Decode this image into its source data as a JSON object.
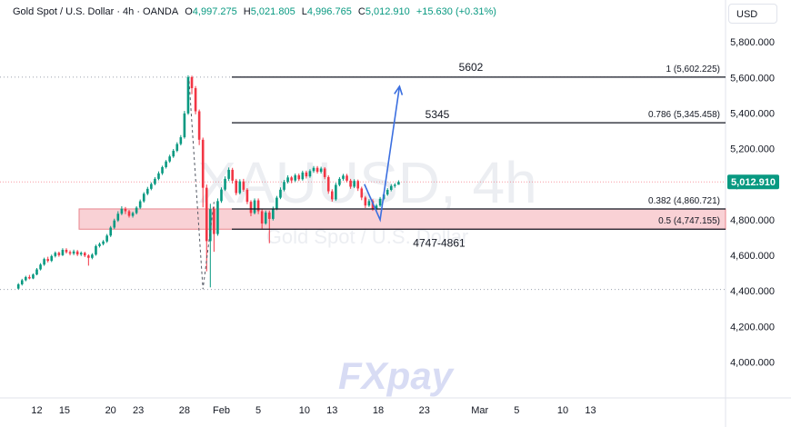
{
  "header": {
    "title": "Gold Spot / U.S. Dollar · 4h · OANDA",
    "o_label": "O",
    "o_value": "4,997.275",
    "h_label": "H",
    "h_value": "5,021.805",
    "l_label": "L",
    "l_value": "4,996.765",
    "c_label": "C",
    "c_value": "5,012.910",
    "change": "+15.630 (+0.31%)"
  },
  "currency_button": "USD",
  "watermark": {
    "symbol": "XAUUSD, 4h",
    "name": "Gold Spot / U.S. Dollar"
  },
  "logo": {
    "text": "FXpay"
  },
  "colors": {
    "up": "#089981",
    "down": "#f23645",
    "zone": "#f7c2c7",
    "arrow": "#3b6fe0",
    "price_tag": "#089981"
  },
  "chart_data": {
    "type": "candlestick",
    "ylim": [
      3900,
      5900
    ],
    "y_ticks": [
      4000,
      4200,
      4400,
      4600,
      4800,
      5000,
      5200,
      5400,
      5600,
      5800
    ],
    "y_tick_labels": [
      "4,000.000",
      "4,200.000",
      "4,400.000",
      "4,600.000",
      "4,800.000",
      "5,000.000",
      "5,200.000",
      "5,400.000",
      "5,600.000",
      "5,800.000"
    ],
    "x_ticks": [
      {
        "label": "12",
        "day": 12
      },
      {
        "label": "15",
        "day": 15
      },
      {
        "label": "20",
        "day": 20
      },
      {
        "label": "23",
        "day": 23
      },
      {
        "label": "28",
        "day": 28
      },
      {
        "label": "Feb",
        "day": 32
      },
      {
        "label": "5",
        "day": 36
      },
      {
        "label": "10",
        "day": 41
      },
      {
        "label": "13",
        "day": 44
      },
      {
        "label": "18",
        "day": 49
      },
      {
        "label": "23",
        "day": 54
      },
      {
        "label": "Mar",
        "day": 60
      },
      {
        "label": "5",
        "day": 64
      },
      {
        "label": "10",
        "day": 69
      },
      {
        "label": "13",
        "day": 72
      }
    ],
    "last_price": 5012.91,
    "last_price_label": "5,012.910",
    "fib_levels": [
      {
        "label": "1 (5,602.225)",
        "price": 5602.225
      },
      {
        "label": "0.786 (5,345.458)",
        "price": 5345.458
      },
      {
        "label": "0.382 (4,860.721)",
        "price": 4860.721
      },
      {
        "label": "0.5 (4,747.155)",
        "price": 4747.155
      }
    ],
    "support_zone": {
      "low": 4747,
      "high": 4861,
      "label": "4747-4861"
    },
    "annotations": [
      {
        "text": "5602",
        "price": 5602
      },
      {
        "text": "5345",
        "price": 5345
      }
    ],
    "projection": [
      {
        "day": 47.5,
        "price": 5000
      },
      {
        "day": 49.2,
        "price": 4800
      },
      {
        "day": 51.3,
        "price": 5550
      }
    ],
    "dashed_path": [
      {
        "day": 28.5,
        "price": 5580
      },
      {
        "day": 30.0,
        "price": 4410
      },
      {
        "day": 31.2,
        "price": 4900
      }
    ],
    "candles": [
      [
        10.0,
        4413,
        4437,
        4408,
        4444
      ],
      [
        10.4,
        4437,
        4460,
        4430,
        4468
      ],
      [
        10.8,
        4460,
        4478,
        4454,
        4485
      ],
      [
        11.2,
        4478,
        4470,
        4465,
        4490
      ],
      [
        11.6,
        4470,
        4492,
        4466,
        4498
      ],
      [
        12.0,
        4492,
        4521,
        4488,
        4529
      ],
      [
        12.4,
        4521,
        4548,
        4515,
        4556
      ],
      [
        12.8,
        4548,
        4579,
        4541,
        4587
      ],
      [
        13.2,
        4579,
        4569,
        4560,
        4592
      ],
      [
        13.6,
        4569,
        4596,
        4562,
        4604
      ],
      [
        14.0,
        4596,
        4614,
        4588,
        4622
      ],
      [
        14.4,
        4614,
        4601,
        4592,
        4621
      ],
      [
        14.8,
        4601,
        4631,
        4596,
        4640
      ],
      [
        15.2,
        4631,
        4618,
        4610,
        4640
      ],
      [
        15.6,
        4618,
        4610,
        4600,
        4628
      ],
      [
        16.0,
        4610,
        4622,
        4601,
        4632
      ],
      [
        16.4,
        4622,
        4605,
        4596,
        4630
      ],
      [
        16.8,
        4605,
        4614,
        4596,
        4622
      ],
      [
        17.2,
        4614,
        4599,
        4590,
        4620
      ],
      [
        17.6,
        4599,
        4586,
        4542,
        4606
      ],
      [
        18.0,
        4586,
        4604,
        4578,
        4612
      ],
      [
        18.4,
        4604,
        4652,
        4598,
        4660
      ],
      [
        18.8,
        4652,
        4664,
        4644,
        4672
      ],
      [
        19.2,
        4664,
        4678,
        4656,
        4686
      ],
      [
        19.6,
        4678,
        4711,
        4670,
        4720
      ],
      [
        20.0,
        4711,
        4756,
        4703,
        4765
      ],
      [
        20.4,
        4756,
        4796,
        4748,
        4806
      ],
      [
        20.8,
        4796,
        4834,
        4788,
        4848
      ],
      [
        21.2,
        4834,
        4862,
        4826,
        4876
      ],
      [
        21.6,
        4862,
        4848,
        4832,
        4872
      ],
      [
        22.0,
        4848,
        4822,
        4812,
        4856
      ],
      [
        22.4,
        4822,
        4838,
        4812,
        4846
      ],
      [
        22.8,
        4838,
        4868,
        4830,
        4876
      ],
      [
        23.2,
        4868,
        4904,
        4860,
        4914
      ],
      [
        23.6,
        4904,
        4946,
        4896,
        4955
      ],
      [
        24.0,
        4946,
        4974,
        4938,
        4985
      ],
      [
        24.4,
        4974,
        5001,
        4966,
        5010
      ],
      [
        24.8,
        5001,
        5030,
        4994,
        5040
      ],
      [
        25.2,
        5030,
        5061,
        5022,
        5072
      ],
      [
        25.6,
        5061,
        5096,
        5052,
        5104
      ],
      [
        26.0,
        5096,
        5128,
        5088,
        5136
      ],
      [
        26.4,
        5128,
        5156,
        5120,
        5166
      ],
      [
        26.8,
        5156,
        5188,
        5148,
        5198
      ],
      [
        27.2,
        5188,
        5226,
        5180,
        5236
      ],
      [
        27.6,
        5226,
        5264,
        5218,
        5276
      ],
      [
        28.0,
        5264,
        5398,
        5256,
        5412
      ],
      [
        28.4,
        5398,
        5602,
        5390,
        5612
      ],
      [
        28.8,
        5602,
        5540,
        5506,
        5610
      ],
      [
        29.2,
        5540,
        5410,
        5393,
        5552
      ],
      [
        29.6,
        5410,
        5250,
        5220,
        5420
      ],
      [
        30.0,
        5250,
        4980,
        4870,
        5262
      ],
      [
        30.4,
        4980,
        4680,
        4510,
        4998
      ],
      [
        30.8,
        4680,
        4860,
        4420,
        4890
      ],
      [
        31.2,
        4860,
        4720,
        4620,
        4874
      ],
      [
        31.6,
        4720,
        4905,
        4710,
        4920
      ],
      [
        32.0,
        4905,
        4970,
        4895,
        4982
      ],
      [
        32.4,
        4970,
        5030,
        4962,
        5044
      ],
      [
        32.8,
        5030,
        5081,
        5018,
        5094
      ],
      [
        33.2,
        5081,
        5020,
        5004,
        5092
      ],
      [
        33.6,
        5020,
        4950,
        4938,
        5030
      ],
      [
        34.0,
        4950,
        5016,
        4942,
        5028
      ],
      [
        34.4,
        5016,
        4969,
        4958,
        5030
      ],
      [
        34.8,
        4969,
        4901,
        4888,
        4978
      ],
      [
        35.2,
        4901,
        4838,
        4820,
        4910
      ],
      [
        35.6,
        4838,
        4909,
        4830,
        4920
      ],
      [
        36.0,
        4909,
        4848,
        4832,
        4920
      ],
      [
        36.4,
        4848,
        4779,
        4750,
        4860
      ],
      [
        36.8,
        4779,
        4841,
        4772,
        4852
      ],
      [
        37.2,
        4841,
        4805,
        4668,
        4852
      ],
      [
        37.6,
        4805,
        4862,
        4796,
        4874
      ],
      [
        38.0,
        4862,
        4924,
        4854,
        4934
      ],
      [
        38.4,
        4924,
        4969,
        4916,
        4982
      ],
      [
        38.8,
        4969,
        5013,
        4960,
        5024
      ],
      [
        39.2,
        5013,
        5038,
        5004,
        5050
      ],
      [
        39.6,
        5038,
        5021,
        5006,
        5046
      ],
      [
        40.0,
        5021,
        5050,
        5012,
        5060
      ],
      [
        40.4,
        5050,
        5028,
        5018,
        5060
      ],
      [
        40.8,
        5028,
        5066,
        5020,
        5076
      ],
      [
        41.2,
        5066,
        5044,
        5032,
        5076
      ],
      [
        41.6,
        5044,
        5074,
        5036,
        5084
      ],
      [
        42.0,
        5074,
        5092,
        5064,
        5102
      ],
      [
        42.4,
        5092,
        5070,
        5060,
        5102
      ],
      [
        42.8,
        5070,
        5088,
        5060,
        5098
      ],
      [
        43.2,
        5088,
        5040,
        5028,
        5096
      ],
      [
        43.6,
        5040,
        4960,
        4946,
        5050
      ],
      [
        44.0,
        4960,
        4915,
        4902,
        4972
      ],
      [
        44.4,
        4915,
        4996,
        4906,
        5008
      ],
      [
        44.8,
        4996,
        5030,
        4988,
        5040
      ],
      [
        45.2,
        5030,
        5048,
        5020,
        5058
      ],
      [
        45.6,
        5048,
        5020,
        5010,
        5058
      ],
      [
        46.0,
        5020,
        4986,
        4974,
        5030
      ],
      [
        46.4,
        4986,
        5018,
        4978,
        5028
      ],
      [
        46.8,
        5018,
        4976,
        4962,
        5026
      ],
      [
        47.2,
        4976,
        4925,
        4910,
        4986
      ],
      [
        47.6,
        4925,
        4880,
        4866,
        4934
      ],
      [
        48.0,
        4880,
        4905,
        4872,
        4916
      ],
      [
        48.4,
        4905,
        4862,
        4850,
        4916
      ],
      [
        48.8,
        4862,
        4880,
        4850,
        4890
      ],
      [
        49.2,
        4880,
        4918,
        4872,
        4928
      ],
      [
        49.6,
        4918,
        4942,
        4910,
        4952
      ],
      [
        50.0,
        4942,
        4968,
        4934,
        4978
      ],
      [
        50.4,
        4968,
        4990,
        4960,
        5000
      ],
      [
        50.8,
        4990,
        4997,
        4980,
        5006
      ],
      [
        51.2,
        4997,
        5013,
        4997,
        5022
      ]
    ]
  }
}
